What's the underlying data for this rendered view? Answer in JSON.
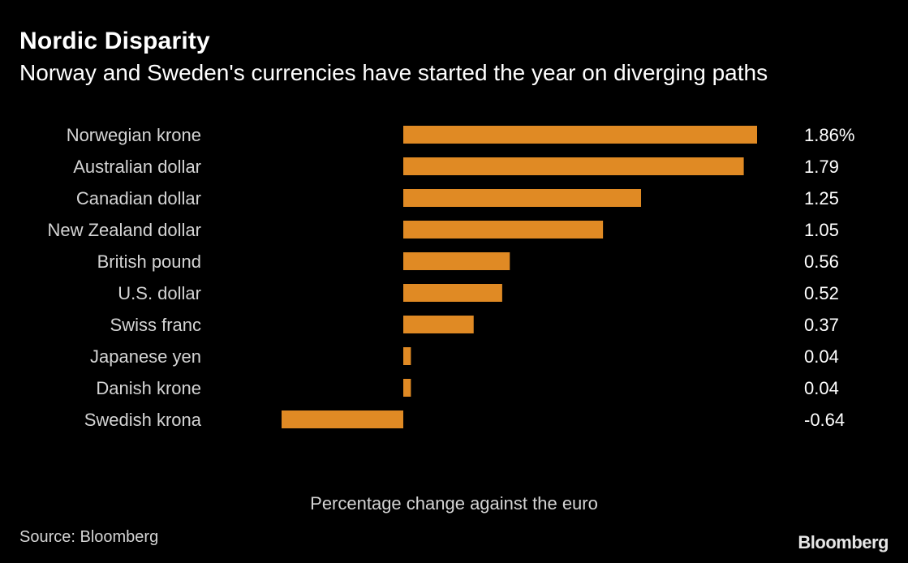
{
  "title": "Nordic Disparity",
  "subtitle": "Norway and Sweden's currencies have started the year on diverging paths",
  "source": "Source: Bloomberg",
  "brand": "Bloomberg",
  "colors": {
    "background": "#000000",
    "bar": "#e08a24",
    "text": "#ffffff",
    "muted_text": "#d4d4d4"
  },
  "chart_data": {
    "type": "bar",
    "orientation": "horizontal",
    "title": "Nordic Disparity",
    "subtitle": "Norway and Sweden's currencies have started the year on diverging paths",
    "xlabel": "Percentage change against the euro",
    "ylabel": "",
    "categories": [
      "Norwegian krone",
      "Australian dollar",
      "Canadian dollar",
      "New Zealand dollar",
      "British pound",
      "U.S. dollar",
      "Swiss franc",
      "Japanese yen",
      "Danish krone",
      "Swedish krona"
    ],
    "values": [
      1.86,
      1.79,
      1.25,
      1.05,
      0.56,
      0.52,
      0.37,
      0.04,
      0.04,
      -0.64
    ],
    "value_labels": [
      "1.86%",
      "1.79",
      "1.25",
      "1.05",
      "0.56",
      "0.52",
      "0.37",
      "0.04",
      "0.04",
      "-0.64"
    ],
    "xlim": [
      -0.64,
      1.86
    ],
    "grid": false,
    "legend": "none"
  }
}
